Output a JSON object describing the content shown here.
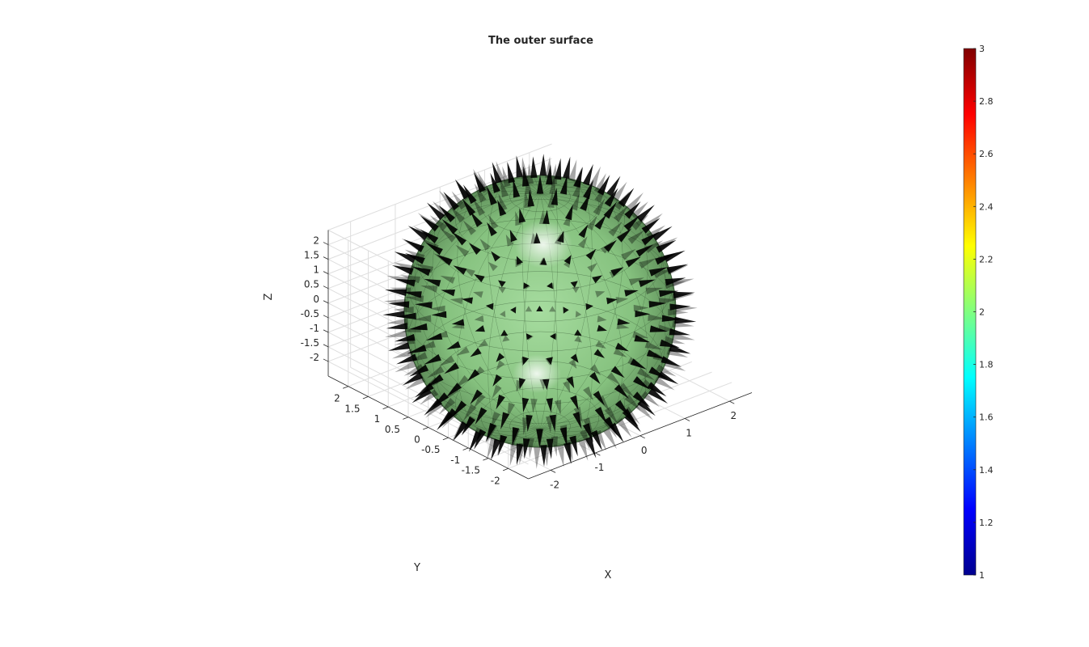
{
  "chart_data": {
    "type": "surface3d-quiver",
    "title": "The outer surface",
    "xlabel": "X",
    "ylabel": "Y",
    "zlabel": "Z",
    "x_ticks": [
      "-2",
      "-1",
      "0",
      "1",
      "2"
    ],
    "y_ticks": [
      "2",
      "1.5",
      "1",
      "0.5",
      "0",
      "-0.5",
      "-1",
      "-1.5",
      "-2"
    ],
    "z_ticks": [
      "2",
      "1.5",
      "1",
      "0.5",
      "0",
      "-0.5",
      "-1",
      "-1.5",
      "-2"
    ],
    "xlim": [
      -2.5,
      2.5
    ],
    "ylim": [
      -2.5,
      2.5
    ],
    "zlim": [
      -2.5,
      2.5
    ],
    "grid": true,
    "surface": {
      "shape": "sphere",
      "radius": 2,
      "color_value": 2,
      "face_color": "#8fce8a"
    },
    "vectors": {
      "direction": "outward normals",
      "color": "#000000"
    },
    "colorbar": {
      "colormap": "jet",
      "limits": [
        1,
        3
      ],
      "ticks": [
        "3",
        "2.8",
        "2.6",
        "2.4",
        "2.2",
        "2",
        "1.8",
        "1.6",
        "1.4",
        "1.2",
        "1"
      ]
    }
  }
}
